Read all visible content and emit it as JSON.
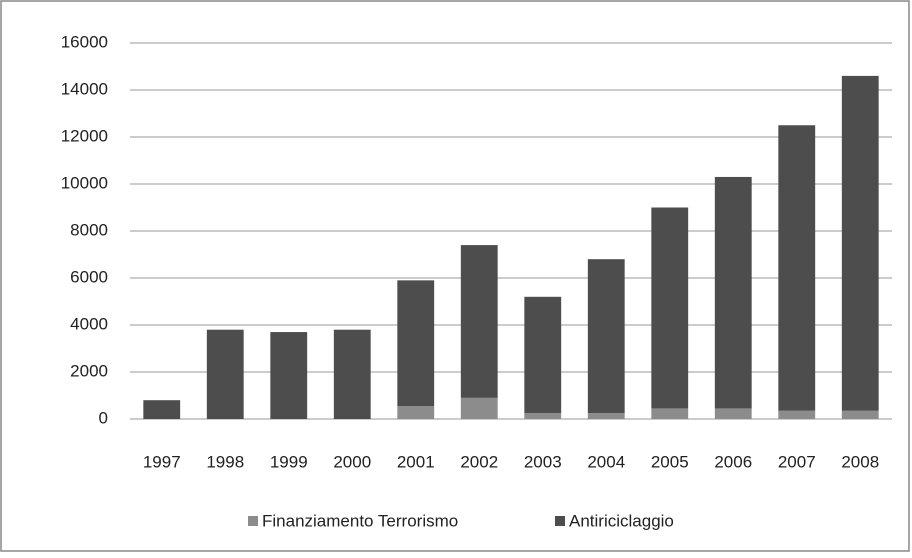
{
  "chart_data": {
    "type": "stacked_bar",
    "categories": [
      "1997",
      "1998",
      "1999",
      "2000",
      "2001",
      "2002",
      "2003",
      "2004",
      "2005",
      "2006",
      "2007",
      "2008"
    ],
    "series": [
      {
        "name": "Finanziamento Terrorismo",
        "color": "#8c8c8c",
        "values": [
          0,
          0,
          0,
          0,
          550,
          900,
          250,
          250,
          450,
          450,
          350,
          350
        ]
      },
      {
        "name": "Antiriciclaggio",
        "color": "#4d4d4d",
        "values": [
          800,
          3800,
          3700,
          3800,
          5350,
          6500,
          4950,
          6550,
          8550,
          9850,
          12150,
          14250
        ]
      }
    ],
    "ylim": [
      0,
      16000
    ],
    "yticks": [
      0,
      2000,
      4000,
      6000,
      8000,
      10000,
      12000,
      14000,
      16000
    ],
    "grid": true,
    "legend": "bottom"
  }
}
